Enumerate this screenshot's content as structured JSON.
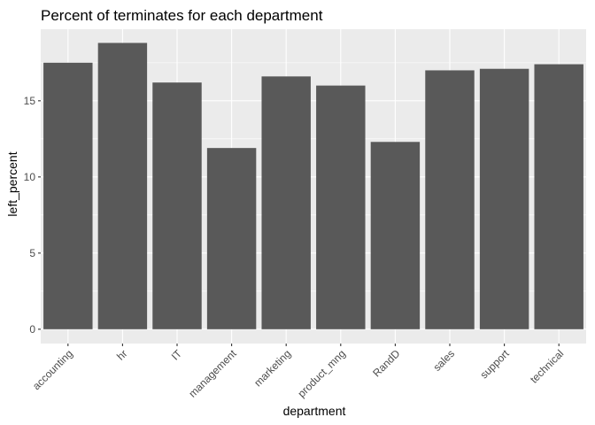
{
  "chart_data": {
    "type": "bar",
    "title": "Percent of terminates for each department",
    "xlabel": "department",
    "ylabel": "left_percent",
    "categories": [
      "accounting",
      "hr",
      "IT",
      "management",
      "marketing",
      "product_mng",
      "RandD",
      "sales",
      "support",
      "technical"
    ],
    "values": [
      17.5,
      18.8,
      16.2,
      11.9,
      16.6,
      16.0,
      12.3,
      17.0,
      17.1,
      17.4
    ],
    "ylim": [
      -0.94,
      19.7
    ],
    "yticks": [
      0,
      5,
      10,
      15
    ],
    "ytick_labels": [
      "0",
      "5",
      "10",
      "15"
    ],
    "grid": true,
    "colors": {
      "panel": "#ebebeb",
      "grid_major": "#ffffff",
      "bar": "#595959",
      "tick": "#333333"
    }
  }
}
